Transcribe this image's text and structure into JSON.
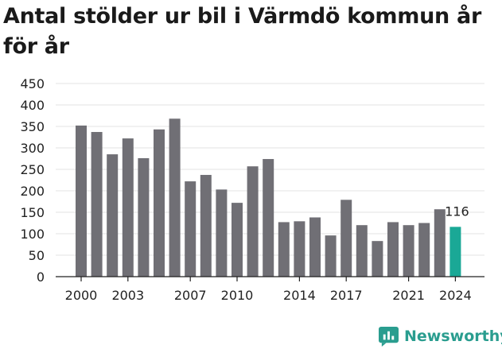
{
  "title": "Antal stölder ur bil i Värmdö kommun år för år",
  "brand": {
    "name": "Newsworthy",
    "icon": "newsworthy-logo-icon",
    "color": "#2a9d8f"
  },
  "chart_data": {
    "type": "bar",
    "title": "Antal stölder ur bil i Värmdö kommun år för år",
    "xlabel": "",
    "ylabel": "",
    "ylim": [
      0,
      450
    ],
    "yticks": [
      0,
      50,
      100,
      150,
      200,
      250,
      300,
      350,
      400,
      450
    ],
    "xtick_labels": [
      "2000",
      "2003",
      "2007",
      "2010",
      "2014",
      "2017",
      "2021",
      "2024"
    ],
    "grid": "horizontal",
    "categories": [
      "2000",
      "2001",
      "2002",
      "2003",
      "2004",
      "2005",
      "2006",
      "2007",
      "2008",
      "2009",
      "2010",
      "2011",
      "2012",
      "2013",
      "2014",
      "2015",
      "2016",
      "2017",
      "2018",
      "2019",
      "2020",
      "2021",
      "2022",
      "2023",
      "2024"
    ],
    "values": [
      352,
      337,
      285,
      322,
      276,
      343,
      368,
      222,
      237,
      203,
      172,
      257,
      274,
      127,
      129,
      138,
      96,
      179,
      120,
      83,
      127,
      120,
      125,
      157,
      116
    ],
    "bar_color": "#706f75",
    "highlight_color": "#1aa896",
    "highlight_category": "2024",
    "annotations": [
      {
        "category": "2024",
        "text": "116"
      }
    ]
  }
}
